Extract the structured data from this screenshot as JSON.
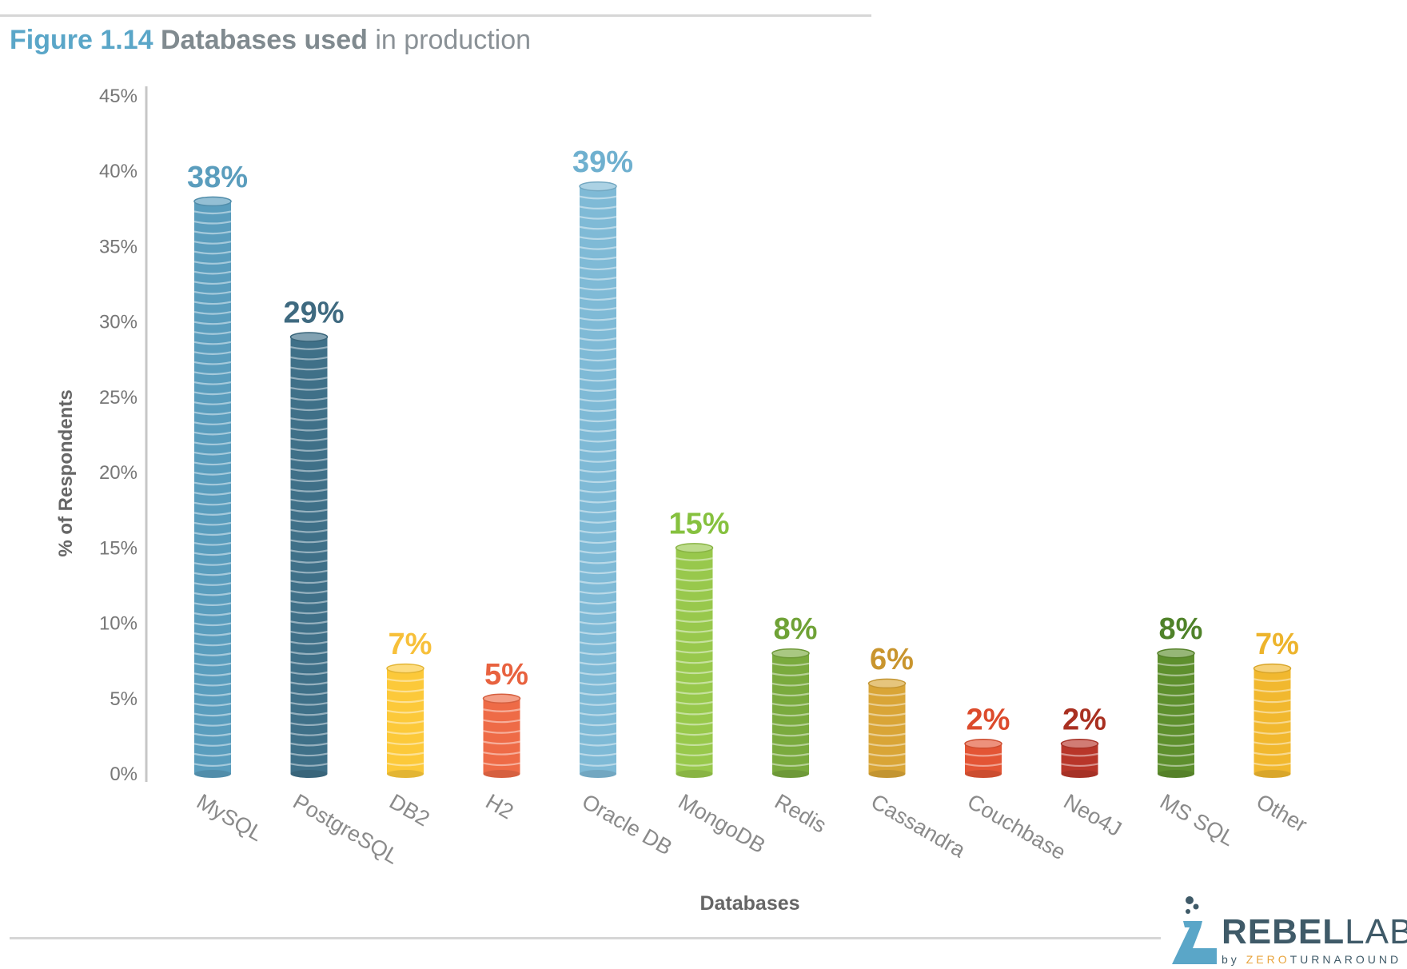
{
  "figure": {
    "number": "Figure 1.14",
    "title": "Databases used",
    "subtitle": "in production"
  },
  "chart_data": {
    "type": "bar",
    "xlabel": "Databases",
    "ylabel": "% of Respondents",
    "ylim": [
      0,
      45
    ],
    "yticks": [
      "0%",
      "5%",
      "10%",
      "15%",
      "20%",
      "25%",
      "30%",
      "35%",
      "40%",
      "45%"
    ],
    "categories": [
      "MySQL",
      "PostgreSQL",
      "DB2",
      "H2",
      "Oracle DB",
      "MongoDB",
      "Redis",
      "Cassandra",
      "Couchbase",
      "Neo4J",
      "MS SQL",
      "Other"
    ],
    "values": [
      38,
      29,
      7,
      5,
      39,
      15,
      8,
      6,
      2,
      2,
      8,
      7
    ],
    "value_labels": [
      "38%",
      "29%",
      "7%",
      "5%",
      "39%",
      "15%",
      "8%",
      "6%",
      "2%",
      "2%",
      "8%",
      "7%"
    ],
    "colors": [
      "#5a9dbd",
      "#3f7088",
      "#fcc93a",
      "#ee6b47",
      "#7fbad6",
      "#98c84c",
      "#7aaa3e",
      "#d9a537",
      "#e35535",
      "#b8362a",
      "#5e8f2e",
      "#f1b82f"
    ],
    "label_colors": [
      "#5a9dbd",
      "#3f6a80",
      "#f7c03a",
      "#e8623f",
      "#6fb0cf",
      "#86c13f",
      "#6fa236",
      "#c9952e",
      "#dc4b2c",
      "#a93021",
      "#4f8229",
      "#edb42c"
    ],
    "grid": false
  },
  "logo": {
    "brand": "REBEL",
    "brand2": "LABS",
    "by": "by ",
    "zero": "ZERO",
    "turnaround": "TURNAROUND"
  }
}
